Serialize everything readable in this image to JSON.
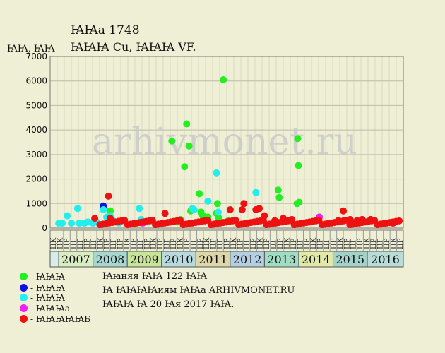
{
  "header": {
    "title_line1": "ꙖꙖа 1748",
    "title_line2": "ꙖꙖꙖ Cu, ꙖꙖꙖ VF.",
    "y_unit_label": "ꙖꙖ, ꙖꙖ"
  },
  "watermark": "arhivmonet.ru",
  "legend": [
    {
      "label": "- ꙖꙖꙖ",
      "color": "#22ee22"
    },
    {
      "label": "- ꙖꙖꙖ",
      "color": "#1111dd"
    },
    {
      "label": "- ꙖꙖꙖ",
      "color": "#22eeee"
    },
    {
      "label": "- ꙖꙖꙖа",
      "color": "#ee22ee"
    },
    {
      "label": "- ꙖꙖꙖꙖꙖБ",
      "color": "#ee1111"
    }
  ],
  "info": {
    "line1": "Ꙗꙗняя ꙖꙖ 122 ꙖꙖ",
    "line2": "Ꙗ ꙖꙖꙖꙖиям ꙖꙖа ARHIVMONET.RU",
    "line3": "ꙖꙖꙖ Ꙗ 20 Ꙗя 2017 ꙖꙖ."
  },
  "chart_data": {
    "type": "scatter",
    "ylim": [
      0,
      7000
    ],
    "yticks": [
      0,
      1000,
      2000,
      3000,
      4000,
      5000,
      6000,
      7000
    ],
    "grid": true,
    "x_range": [
      2006.5,
      2016.8
    ],
    "quarter_labels": [
      "ЦК",
      "ЦК",
      "ЦР",
      "ЦГ",
      "ЦГ",
      "ЦР",
      "ЦГ",
      "ЦК",
      "ЦР",
      "ЦГ",
      "ЦР",
      "ЦК",
      "ЦР",
      "ЦГ",
      "ЦР",
      "ЦК",
      "ЦР",
      "ЦГ",
      "ЦР",
      "ЦК",
      "ЦР",
      "ЦГ",
      "ЦР",
      "ЦК",
      "ЦР",
      "ЦГ",
      "ЦР",
      "ЦК",
      "ЦР",
      "ЦГ",
      "ЦР",
      "ЦК",
      "ЦР",
      "ЦГ",
      "ЦР",
      "ЦК",
      "ЦР",
      "ЦГ",
      "ЦР",
      "ЦК",
      "ЦР",
      "ЦГ",
      "ЦР",
      "ЦК",
      "ЦР",
      "ЦГ",
      "ЦР",
      "ЦК",
      "ЦР",
      "ЦГ",
      "ЦР",
      "ЦК",
      "ЦР"
    ],
    "years": [
      {
        "label": "2007",
        "start": 2006.75,
        "end": 2007.75,
        "color": "#d8edc2"
      },
      {
        "label": "2008",
        "start": 2007.75,
        "end": 2008.75,
        "color": "#a8d6d0"
      },
      {
        "label": "2009",
        "start": 2008.75,
        "end": 2009.75,
        "color": "#c9e49a"
      },
      {
        "label": "2010",
        "start": 2009.75,
        "end": 2010.75,
        "color": "#b8dadf"
      },
      {
        "label": "2011",
        "start": 2010.75,
        "end": 2011.75,
        "color": "#ddd6a6"
      },
      {
        "label": "2012",
        "start": 2011.75,
        "end": 2012.75,
        "color": "#b3cfe0"
      },
      {
        "label": "2013",
        "start": 2012.75,
        "end": 2013.75,
        "color": "#a0ddc4"
      },
      {
        "label": "2014",
        "start": 2013.75,
        "end": 2014.75,
        "color": "#e2e8a8"
      },
      {
        "label": "2015",
        "start": 2014.75,
        "end": 2015.75,
        "color": "#a3d3c8"
      },
      {
        "label": "2016",
        "start": 2015.75,
        "end": 2016.8,
        "color": "#b7ddd6"
      }
    ],
    "year_head_color": "#d8ecea",
    "series": [
      {
        "color": "#22ee22",
        "points": [
          [
            2008.25,
            700
          ],
          [
            2009.45,
            300
          ],
          [
            2010.05,
            3550
          ],
          [
            2010.2,
            250
          ],
          [
            2010.3,
            350
          ],
          [
            2010.42,
            2500
          ],
          [
            2010.48,
            4250
          ],
          [
            2010.55,
            3350
          ],
          [
            2010.6,
            700
          ],
          [
            2010.85,
            1400
          ],
          [
            2010.9,
            650
          ],
          [
            2010.95,
            500
          ],
          [
            2011.1,
            450
          ],
          [
            2011.35,
            600
          ],
          [
            2011.38,
            1000
          ],
          [
            2011.42,
            400
          ],
          [
            2011.55,
            6050
          ],
          [
            2011.7,
            300
          ],
          [
            2013.15,
            1550
          ],
          [
            2013.18,
            1250
          ],
          [
            2013.5,
            300
          ],
          [
            2013.7,
            1000
          ],
          [
            2013.72,
            3650
          ],
          [
            2013.74,
            2550
          ],
          [
            2013.76,
            1050
          ]
        ]
      },
      {
        "color": "#1111dd",
        "points": [
          [
            2008.05,
            900
          ]
        ]
      },
      {
        "color": "#22eeee",
        "points": [
          [
            2006.75,
            200
          ],
          [
            2006.85,
            200
          ],
          [
            2007.0,
            500
          ],
          [
            2007.12,
            200
          ],
          [
            2007.3,
            800
          ],
          [
            2007.35,
            200
          ],
          [
            2007.5,
            200
          ],
          [
            2007.6,
            250
          ],
          [
            2007.75,
            200
          ],
          [
            2007.85,
            250
          ],
          [
            2008.0,
            150
          ],
          [
            2008.05,
            750
          ],
          [
            2008.15,
            450
          ],
          [
            2008.2,
            400
          ],
          [
            2008.25,
            500
          ],
          [
            2008.3,
            350
          ],
          [
            2008.5,
            200
          ],
          [
            2009.1,
            800
          ],
          [
            2009.15,
            350
          ],
          [
            2009.5,
            250
          ],
          [
            2010.65,
            800
          ],
          [
            2010.7,
            750
          ],
          [
            2011.1,
            1100
          ],
          [
            2011.35,
            2250
          ],
          [
            2011.4,
            650
          ],
          [
            2012.5,
            1450
          ]
        ]
      },
      {
        "color": "#ee22ee",
        "points": [
          [
            2008.3,
            300
          ],
          [
            2009.2,
            200
          ],
          [
            2014.35,
            450
          ]
        ]
      },
      {
        "color": "#ee1111",
        "points": [
          [
            2007.8,
            400
          ],
          [
            2008.2,
            1300
          ],
          [
            2008.25,
            400
          ],
          [
            2009.85,
            600
          ],
          [
            2011.75,
            750
          ],
          [
            2012.1,
            750
          ],
          [
            2012.15,
            1000
          ],
          [
            2012.5,
            750
          ],
          [
            2012.6,
            800
          ],
          [
            2012.75,
            500
          ],
          [
            2013.05,
            300
          ],
          [
            2013.3,
            400
          ],
          [
            2013.55,
            350
          ],
          [
            2014.9,
            300
          ],
          [
            2015.05,
            700
          ],
          [
            2015.25,
            350
          ],
          [
            2015.45,
            300
          ],
          [
            2015.6,
            350
          ],
          [
            2015.85,
            350
          ],
          [
            2016.5,
            200
          ]
        ]
      }
    ]
  }
}
